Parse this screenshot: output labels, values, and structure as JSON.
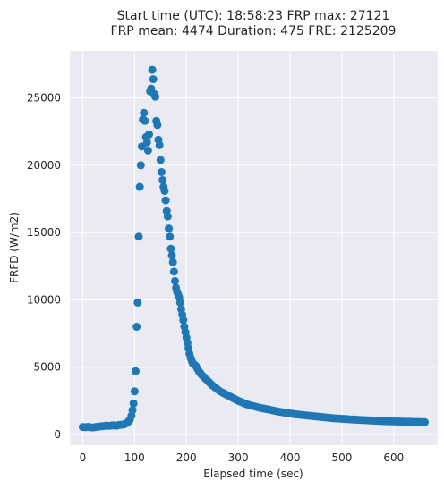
{
  "chart_data": {
    "type": "scatter",
    "title_line1": "Start time (UTC): 18:58:23 FRP max: 27121",
    "title_line2": "FRP mean: 4474 Duration: 475 FRE: 2125209",
    "xlabel": "Elapsed time (sec)",
    "ylabel": "FRFD (W/m2)",
    "xlim": [
      -25,
      685
    ],
    "ylim": [
      -800,
      28500
    ],
    "xticks": [
      0,
      100,
      200,
      300,
      400,
      500,
      600
    ],
    "yticks": [
      0,
      5000,
      10000,
      15000,
      20000,
      25000
    ],
    "grid": true,
    "series": [
      {
        "color": "#1f77b4",
        "points": [
          [
            0,
            550
          ],
          [
            5,
            540
          ],
          [
            10,
            560
          ],
          [
            15,
            530
          ],
          [
            20,
            520
          ],
          [
            25,
            550
          ],
          [
            30,
            580
          ],
          [
            35,
            600
          ],
          [
            40,
            620
          ],
          [
            45,
            650
          ],
          [
            50,
            640
          ],
          [
            55,
            660
          ],
          [
            60,
            680
          ],
          [
            65,
            650
          ],
          [
            70,
            700
          ],
          [
            75,
            720
          ],
          [
            80,
            760
          ],
          [
            85,
            850
          ],
          [
            88,
            950
          ],
          [
            91,
            1100
          ],
          [
            94,
            1400
          ],
          [
            96,
            1800
          ],
          [
            98,
            2300
          ],
          [
            100,
            3200
          ],
          [
            102,
            4700
          ],
          [
            104,
            8000
          ],
          [
            106,
            9800
          ],
          [
            108,
            14700
          ],
          [
            110,
            18400
          ],
          [
            112,
            20000
          ],
          [
            114,
            21400
          ],
          [
            116,
            23400
          ],
          [
            118,
            23900
          ],
          [
            120,
            23300
          ],
          [
            122,
            22100
          ],
          [
            124,
            21700
          ],
          [
            126,
            21100
          ],
          [
            128,
            22300
          ],
          [
            130,
            25500
          ],
          [
            132,
            25700
          ],
          [
            134,
            27100
          ],
          [
            136,
            26400
          ],
          [
            138,
            25300
          ],
          [
            140,
            25100
          ],
          [
            142,
            23300
          ],
          [
            144,
            23000
          ],
          [
            146,
            21900
          ],
          [
            148,
            21500
          ],
          [
            150,
            20400
          ],
          [
            152,
            19500
          ],
          [
            154,
            18900
          ],
          [
            156,
            18400
          ],
          [
            158,
            18100
          ],
          [
            160,
            17400
          ],
          [
            162,
            16600
          ],
          [
            164,
            16200
          ],
          [
            166,
            15300
          ],
          [
            168,
            14700
          ],
          [
            170,
            13800
          ],
          [
            172,
            13300
          ],
          [
            174,
            12800
          ],
          [
            176,
            12100
          ],
          [
            178,
            11400
          ],
          [
            180,
            10900
          ],
          [
            182,
            10600
          ],
          [
            184,
            10400
          ],
          [
            186,
            10200
          ],
          [
            188,
            9800
          ],
          [
            190,
            9300
          ],
          [
            192,
            8900
          ],
          [
            194,
            8500
          ],
          [
            196,
            8000
          ],
          [
            198,
            7600
          ],
          [
            200,
            7200
          ],
          [
            202,
            6800
          ],
          [
            204,
            6400
          ],
          [
            206,
            6000
          ],
          [
            208,
            5700
          ],
          [
            210,
            5500
          ],
          [
            212,
            5300
          ],
          [
            215,
            5200
          ],
          [
            218,
            5100
          ],
          [
            221,
            4900
          ],
          [
            224,
            4700
          ],
          [
            227,
            4550
          ],
          [
            230,
            4400
          ],
          [
            234,
            4250
          ],
          [
            238,
            4100
          ],
          [
            242,
            3950
          ],
          [
            246,
            3800
          ],
          [
            250,
            3650
          ],
          [
            255,
            3500
          ],
          [
            260,
            3350
          ],
          [
            265,
            3200
          ],
          [
            270,
            3100
          ],
          [
            275,
            3000
          ],
          [
            280,
            2900
          ],
          [
            285,
            2800
          ],
          [
            290,
            2700
          ],
          [
            295,
            2600
          ],
          [
            300,
            2500
          ],
          [
            305,
            2420
          ],
          [
            310,
            2340
          ],
          [
            315,
            2260
          ],
          [
            320,
            2200
          ],
          [
            325,
            2150
          ],
          [
            330,
            2100
          ],
          [
            335,
            2050
          ],
          [
            340,
            2000
          ],
          [
            345,
            1960
          ],
          [
            350,
            1920
          ],
          [
            355,
            1880
          ],
          [
            360,
            1850
          ],
          [
            365,
            1800
          ],
          [
            370,
            1760
          ],
          [
            375,
            1720
          ],
          [
            380,
            1680
          ],
          [
            385,
            1650
          ],
          [
            390,
            1620
          ],
          [
            395,
            1590
          ],
          [
            400,
            1560
          ],
          [
            405,
            1530
          ],
          [
            410,
            1500
          ],
          [
            415,
            1480
          ],
          [
            420,
            1460
          ],
          [
            425,
            1440
          ],
          [
            430,
            1420
          ],
          [
            435,
            1400
          ],
          [
            440,
            1380
          ],
          [
            445,
            1360
          ],
          [
            450,
            1340
          ],
          [
            455,
            1320
          ],
          [
            460,
            1300
          ],
          [
            465,
            1280
          ],
          [
            470,
            1260
          ],
          [
            475,
            1240
          ],
          [
            480,
            1220
          ],
          [
            485,
            1200
          ],
          [
            490,
            1190
          ],
          [
            495,
            1180
          ],
          [
            500,
            1160
          ],
          [
            505,
            1150
          ],
          [
            510,
            1140
          ],
          [
            515,
            1120
          ],
          [
            520,
            1110
          ],
          [
            525,
            1100
          ],
          [
            530,
            1090
          ],
          [
            535,
            1080
          ],
          [
            540,
            1070
          ],
          [
            545,
            1060
          ],
          [
            550,
            1050
          ],
          [
            555,
            1040
          ],
          [
            560,
            1030
          ],
          [
            565,
            1020
          ],
          [
            570,
            1010
          ],
          [
            575,
            1000
          ],
          [
            580,
            990
          ],
          [
            585,
            985
          ],
          [
            590,
            980
          ],
          [
            595,
            975
          ],
          [
            600,
            970
          ],
          [
            605,
            965
          ],
          [
            610,
            960
          ],
          [
            615,
            955
          ],
          [
            620,
            950
          ],
          [
            625,
            945
          ],
          [
            630,
            940
          ],
          [
            635,
            935
          ],
          [
            640,
            930
          ],
          [
            645,
            925
          ],
          [
            650,
            920
          ],
          [
            655,
            915
          ],
          [
            660,
            910
          ]
        ]
      }
    ]
  }
}
